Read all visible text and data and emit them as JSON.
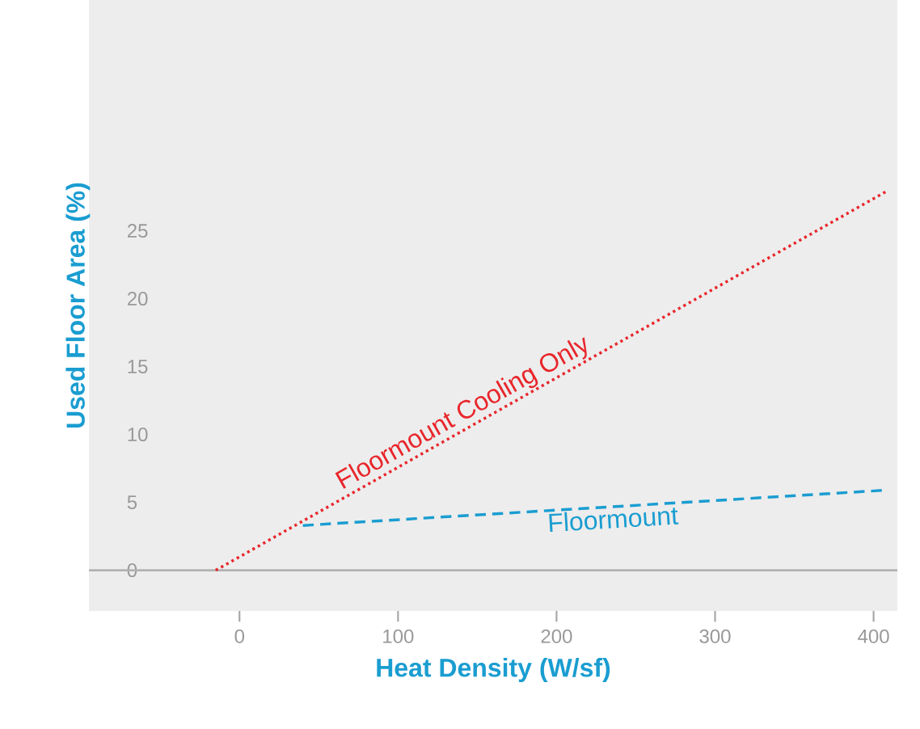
{
  "chart_data": {
    "type": "line",
    "xlabel": "Heat Density (W/sf)",
    "ylabel": "Used Floor Area (%)",
    "xlim": [
      -95,
      415
    ],
    "ylim": [
      -3,
      42
    ],
    "xticks": [
      0,
      100,
      200,
      300,
      400
    ],
    "yticks": [
      0,
      5,
      10,
      15,
      20,
      25
    ],
    "series": [
      {
        "name": "Floormount Cooling Only",
        "color": "#e8262b",
        "line_style": "dotted",
        "x": [
          -15,
          408
        ],
        "values": [
          0,
          27.9
        ]
      },
      {
        "name": "Floormount",
        "color": "#1a9dd1",
        "line_style": "dashed",
        "x": [
          40,
          408
        ],
        "values": [
          3.3,
          5.9
        ]
      }
    ],
    "ref_lines": [
      {
        "axis": "y",
        "value": 0,
        "color": "#b2b2b2"
      }
    ],
    "grid": false,
    "legend": false
  }
}
